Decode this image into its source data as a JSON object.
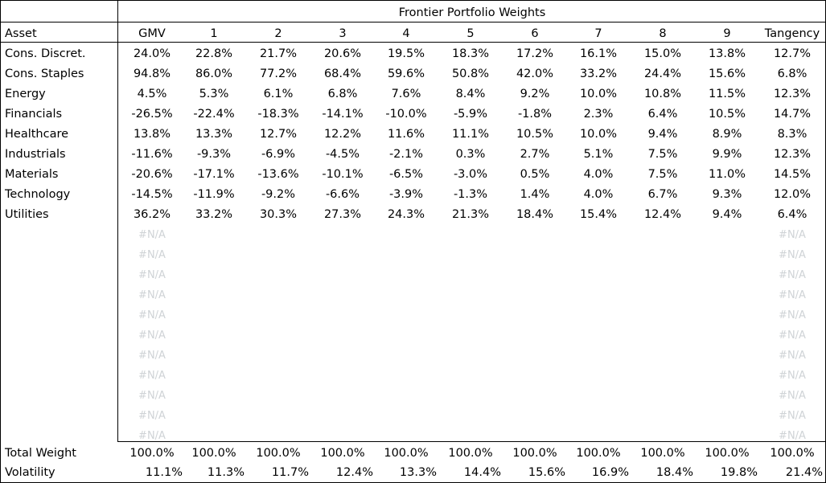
{
  "table": {
    "title": "Frontier Portfolio Weights",
    "asset_header": "Asset",
    "columns": [
      "GMV",
      "1",
      "2",
      "3",
      "4",
      "5",
      "6",
      "7",
      "8",
      "9",
      "Tangency"
    ],
    "rows": [
      {
        "label": "Cons. Discret.",
        "values": [
          "24.0%",
          "22.8%",
          "21.7%",
          "20.6%",
          "19.5%",
          "18.3%",
          "17.2%",
          "16.1%",
          "15.0%",
          "13.8%",
          "12.7%"
        ]
      },
      {
        "label": "Cons. Staples",
        "values": [
          "94.8%",
          "86.0%",
          "77.2%",
          "68.4%",
          "59.6%",
          "50.8%",
          "42.0%",
          "33.2%",
          "24.4%",
          "15.6%",
          "6.8%"
        ]
      },
      {
        "label": "Energy",
        "values": [
          "4.5%",
          "5.3%",
          "6.1%",
          "6.8%",
          "7.6%",
          "8.4%",
          "9.2%",
          "10.0%",
          "10.8%",
          "11.5%",
          "12.3%"
        ]
      },
      {
        "label": "Financials",
        "values": [
          "-26.5%",
          "-22.4%",
          "-18.3%",
          "-14.1%",
          "-10.0%",
          "-5.9%",
          "-1.8%",
          "2.3%",
          "6.4%",
          "10.5%",
          "14.7%"
        ]
      },
      {
        "label": "Healthcare",
        "values": [
          "13.8%",
          "13.3%",
          "12.7%",
          "12.2%",
          "11.6%",
          "11.1%",
          "10.5%",
          "10.0%",
          "9.4%",
          "8.9%",
          "8.3%"
        ]
      },
      {
        "label": "Industrials",
        "values": [
          "-11.6%",
          "-9.3%",
          "-6.9%",
          "-4.5%",
          "-2.1%",
          "0.3%",
          "2.7%",
          "5.1%",
          "7.5%",
          "9.9%",
          "12.3%"
        ]
      },
      {
        "label": "Materials",
        "values": [
          "-20.6%",
          "-17.1%",
          "-13.6%",
          "-10.1%",
          "-6.5%",
          "-3.0%",
          "0.5%",
          "4.0%",
          "7.5%",
          "11.0%",
          "14.5%"
        ]
      },
      {
        "label": "Technology",
        "values": [
          "-14.5%",
          "-11.9%",
          "-9.2%",
          "-6.6%",
          "-3.9%",
          "-1.3%",
          "1.4%",
          "4.0%",
          "6.7%",
          "9.3%",
          "12.0%"
        ]
      },
      {
        "label": "Utilities",
        "values": [
          "36.2%",
          "33.2%",
          "30.3%",
          "27.3%",
          "24.3%",
          "21.3%",
          "18.4%",
          "15.4%",
          "12.4%",
          "9.4%",
          "6.4%"
        ]
      }
    ],
    "na_text": "#N/A",
    "na_rows": 11,
    "totals": {
      "label": "Total Weight",
      "values": [
        "100.0%",
        "100.0%",
        "100.0%",
        "100.0%",
        "100.0%",
        "100.0%",
        "100.0%",
        "100.0%",
        "100.0%",
        "100.0%",
        "100.0%"
      ]
    },
    "volatility": {
      "label": "Volatility",
      "values": [
        "11.1%",
        "11.3%",
        "11.7%",
        "12.4%",
        "13.3%",
        "14.4%",
        "15.6%",
        "16.9%",
        "18.4%",
        "19.8%",
        "21.4%"
      ]
    }
  }
}
